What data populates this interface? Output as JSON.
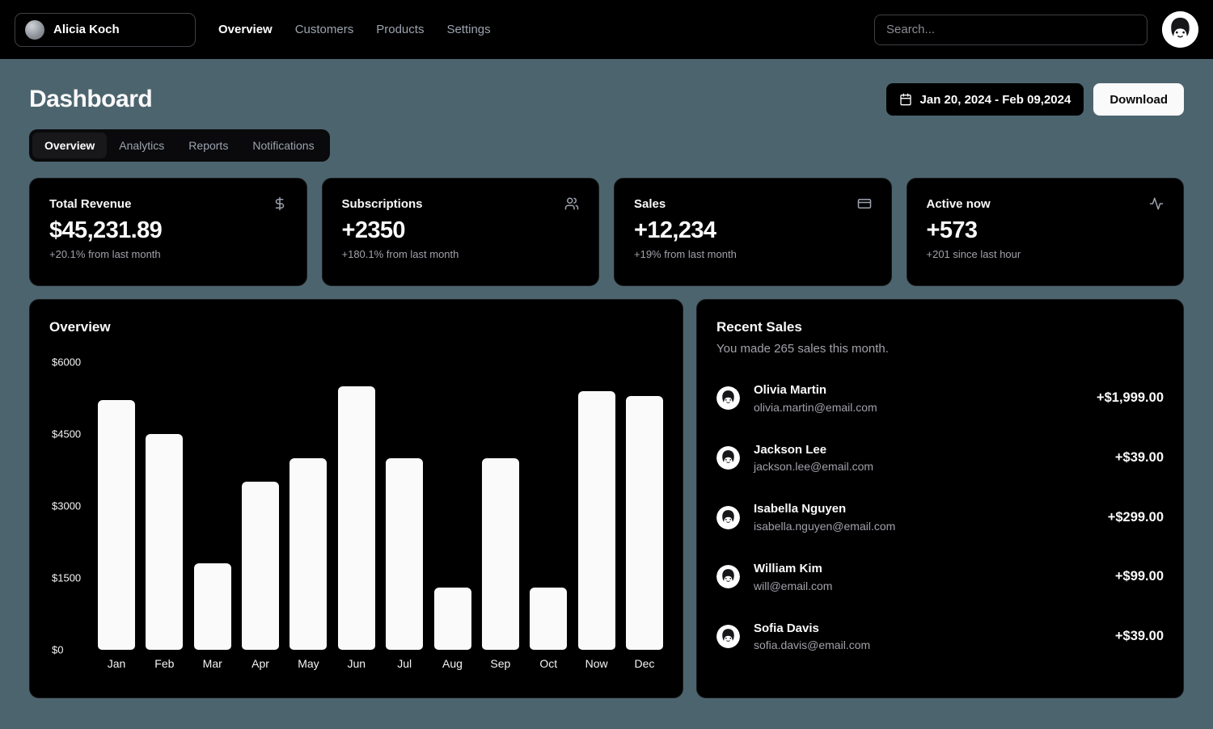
{
  "colors": {
    "page_background": "#4c646e",
    "card_background": "#000000",
    "bar_color": "#fafafa",
    "muted_text": "#a1a1aa",
    "download_button_background": "#fafafa"
  },
  "header": {
    "team_name": "Alicia Koch",
    "nav": [
      {
        "label": "Overview",
        "active": true
      },
      {
        "label": "Customers",
        "active": false
      },
      {
        "label": "Products",
        "active": false
      },
      {
        "label": "Settings",
        "active": false
      }
    ],
    "search_placeholder": "Search..."
  },
  "page": {
    "title": "Dashboard",
    "date_range": "Jan 20, 2024 - Feb 09,2024",
    "download_label": "Download",
    "tabs": [
      {
        "label": "Overview",
        "active": true
      },
      {
        "label": "Analytics",
        "active": false
      },
      {
        "label": "Reports",
        "active": false
      },
      {
        "label": "Notifications",
        "active": false
      }
    ]
  },
  "stats": [
    {
      "title": "Total Revenue",
      "icon": "dollar-sign-icon",
      "value": "$45,231.89",
      "note": "+20.1% from last month"
    },
    {
      "title": "Subscriptions",
      "icon": "users-icon",
      "value": "+2350",
      "note": "+180.1% from last month"
    },
    {
      "title": "Sales",
      "icon": "credit-card-icon",
      "value": "+12,234",
      "note": "+19% from last month"
    },
    {
      "title": "Active now",
      "icon": "activity-icon",
      "value": "+573",
      "note": "+201 since last hour"
    }
  ],
  "chart_data": {
    "type": "bar",
    "title": "Overview",
    "categories": [
      "Jan",
      "Feb",
      "Mar",
      "Apr",
      "May",
      "Jun",
      "Jul",
      "Aug",
      "Sep",
      "Oct",
      "Now",
      "Dec"
    ],
    "values": [
      5200,
      4500,
      1800,
      3500,
      4000,
      5500,
      4000,
      1300,
      4000,
      1300,
      5400,
      5300
    ],
    "xlabel": "",
    "ylabel": "",
    "ylim": [
      0,
      6000
    ],
    "ytick_labels": [
      "$6000",
      "$4500",
      "$3000",
      "$1500",
      "$0"
    ],
    "grid": false,
    "legend": false,
    "bar_color": "#fafafa"
  },
  "recent_sales": {
    "title": "Recent Sales",
    "subtitle": "You made 265 sales this month.",
    "items": [
      {
        "name": "Olivia Martin",
        "email": "olivia.martin@email.com",
        "amount": "+$1,999.00"
      },
      {
        "name": "Jackson Lee",
        "email": "jackson.lee@email.com",
        "amount": "+$39.00"
      },
      {
        "name": "Isabella Nguyen",
        "email": "isabella.nguyen@email.com",
        "amount": "+$299.00"
      },
      {
        "name": "William Kim",
        "email": "will@email.com",
        "amount": "+$99.00"
      },
      {
        "name": "Sofia Davis",
        "email": "sofia.davis@email.com",
        "amount": "+$39.00"
      }
    ]
  }
}
